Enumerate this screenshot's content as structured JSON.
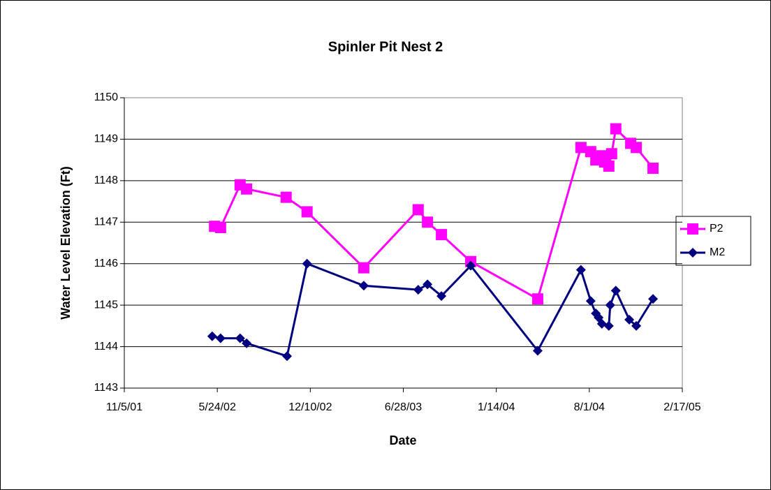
{
  "chart_data": {
    "type": "line",
    "title": "Spinler Pit Nest 2",
    "xlabel": "Date",
    "ylabel": "Water Level Elevation (Ft)",
    "xlim": [
      "2001-11-05",
      "2005-02-17"
    ],
    "xticks": [
      {
        "value": "2001-11-05",
        "label": "11/5/01"
      },
      {
        "value": "2002-05-24",
        "label": "5/24/02"
      },
      {
        "value": "2002-12-10",
        "label": "12/10/02"
      },
      {
        "value": "2003-06-28",
        "label": "6/28/03"
      },
      {
        "value": "2004-01-14",
        "label": "1/14/04"
      },
      {
        "value": "2004-08-01",
        "label": "8/1/04"
      },
      {
        "value": "2005-02-17",
        "label": "2/17/05"
      }
    ],
    "ylim": [
      1143,
      1150
    ],
    "yticks": [
      1143,
      1144,
      1145,
      1146,
      1147,
      1148,
      1149,
      1150
    ],
    "grid": true,
    "legend": "right",
    "series": [
      {
        "name": "P2",
        "color": "#ff00ff",
        "marker": "square",
        "x": [
          "2002-05-18",
          "2002-05-31",
          "2002-07-12",
          "2002-07-26",
          "2002-10-19",
          "2002-12-03",
          "2003-04-04",
          "2003-07-30",
          "2003-08-19",
          "2003-09-18",
          "2003-11-20",
          "2004-04-12",
          "2004-07-14",
          "2004-08-04",
          "2004-08-15",
          "2004-08-28",
          "2004-09-03",
          "2004-09-12",
          "2004-09-18",
          "2004-09-27",
          "2004-10-29",
          "2004-11-10",
          "2004-12-16"
        ],
        "values": [
          1146.9,
          1146.87,
          1147.9,
          1147.8,
          1147.6,
          1147.25,
          1145.9,
          1147.3,
          1147.0,
          1146.7,
          1146.05,
          1145.15,
          1148.8,
          1148.7,
          1148.5,
          1148.6,
          1148.45,
          1148.35,
          1148.65,
          1149.25,
          1148.9,
          1148.8,
          1148.3
        ]
      },
      {
        "name": "M2",
        "color": "#000080",
        "marker": "diamond",
        "x": [
          "2002-05-13",
          "2002-05-31",
          "2002-07-12",
          "2002-07-26",
          "2002-10-21",
          "2002-12-03",
          "2003-04-04",
          "2003-07-30",
          "2003-08-19",
          "2003-09-18",
          "2003-11-20",
          "2004-04-12",
          "2004-07-14",
          "2004-08-04",
          "2004-08-15",
          "2004-08-21",
          "2004-08-28",
          "2004-09-12",
          "2004-09-15",
          "2004-09-27",
          "2004-10-26",
          "2004-11-10",
          "2004-12-16"
        ],
        "values": [
          1144.25,
          1144.2,
          1144.2,
          1144.08,
          1143.77,
          1146.0,
          1145.47,
          1145.37,
          1145.5,
          1145.22,
          1145.95,
          1143.9,
          1145.85,
          1145.1,
          1144.8,
          1144.7,
          1144.55,
          1144.5,
          1145.0,
          1145.35,
          1144.65,
          1144.5,
          1145.15
        ]
      }
    ]
  }
}
